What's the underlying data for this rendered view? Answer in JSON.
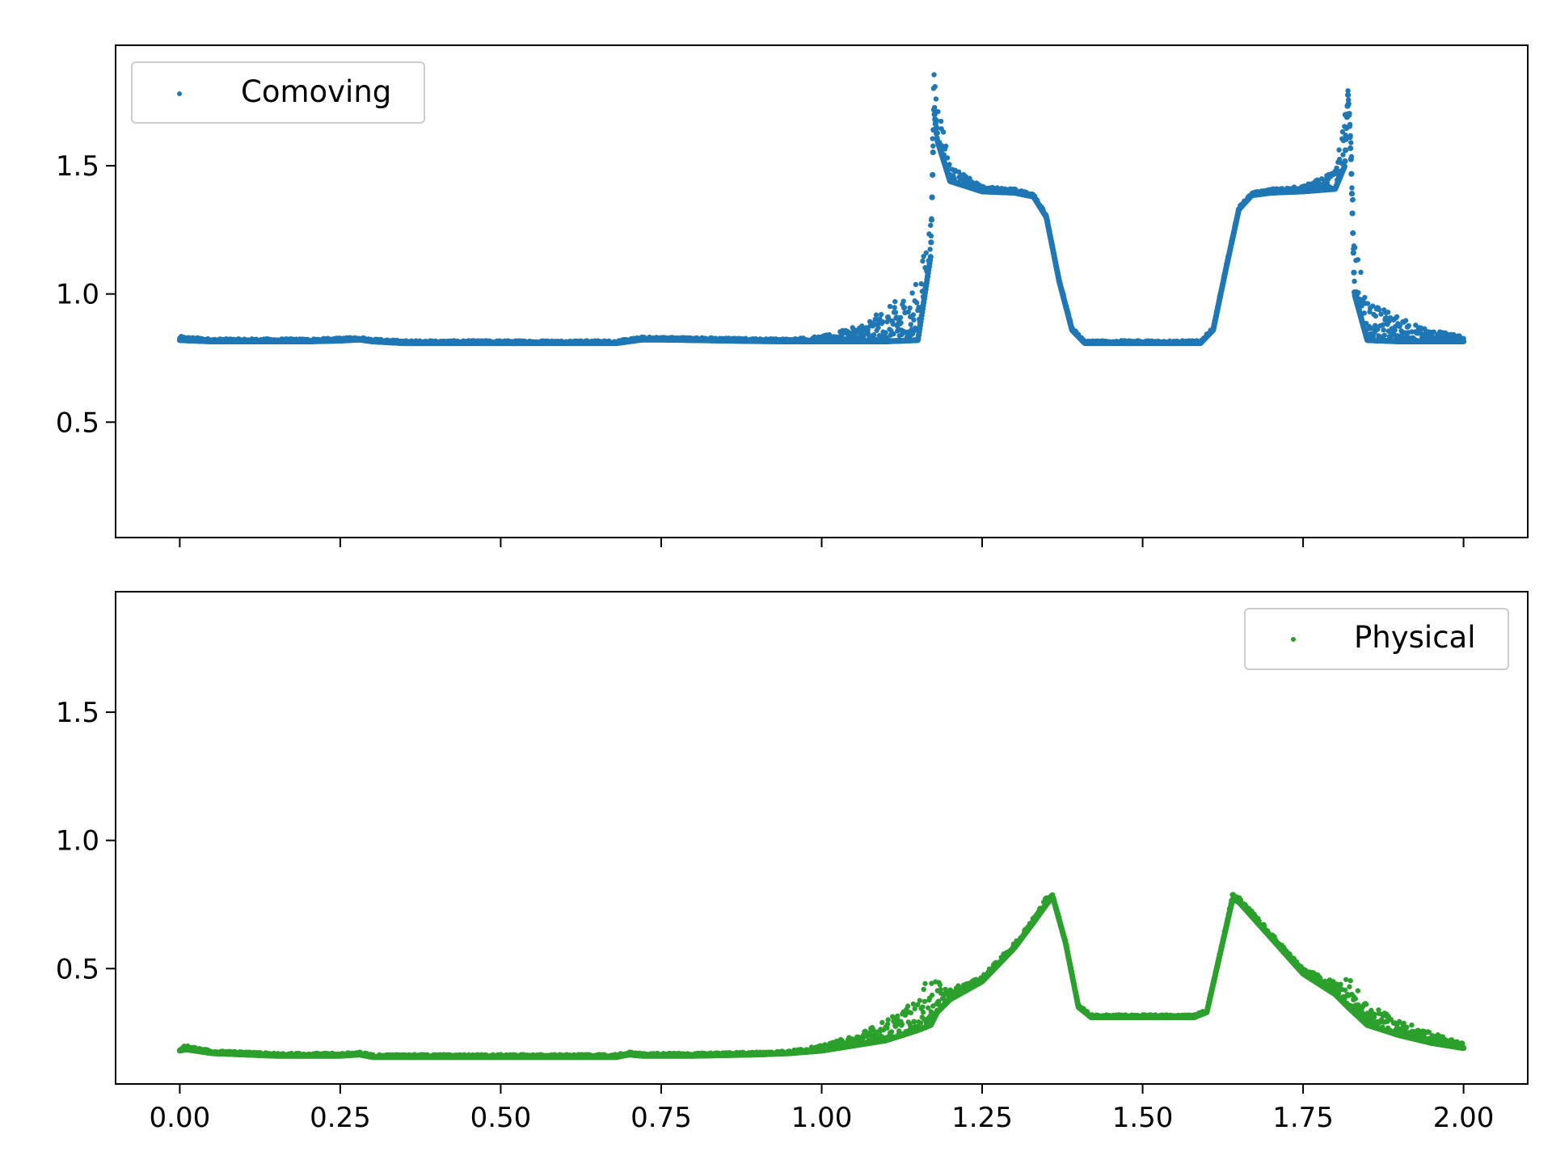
{
  "chart_data": [
    {
      "type": "scatter",
      "panel": "top",
      "color": "#1f77b4",
      "legend": {
        "label": "Comoving",
        "placement": "upper-left"
      },
      "xlim": [
        -0.1,
        2.1
      ],
      "ylim": [
        0.05,
        1.97
      ],
      "x_ticks": [
        0.0,
        0.25,
        0.5,
        0.75,
        1.0,
        1.25,
        1.5,
        1.75,
        2.0
      ],
      "x_tick_labels": [],
      "y_ticks": [
        0.5,
        1.0,
        1.5
      ],
      "y_tick_labels": [
        "0.5",
        "1.0",
        "1.5"
      ],
      "grid": false,
      "series": [
        {
          "name": "Comoving",
          "x": [
            0.0,
            0.05,
            0.1,
            0.15,
            0.2,
            0.25,
            0.28,
            0.3,
            0.35,
            0.4,
            0.5,
            0.6,
            0.68,
            0.7,
            0.72,
            0.75,
            0.8,
            0.9,
            0.95,
            1.0,
            1.05,
            1.1,
            1.15,
            1.17,
            1.175,
            1.18,
            1.2,
            1.25,
            1.3,
            1.33,
            1.35,
            1.37,
            1.39,
            1.41,
            1.45,
            1.5,
            1.55,
            1.59,
            1.61,
            1.63,
            1.65,
            1.67,
            1.7,
            1.75,
            1.8,
            1.815,
            1.82,
            1.825,
            1.83,
            1.85,
            1.9,
            1.95,
            2.0
          ],
          "y": [
            0.82,
            0.815,
            0.815,
            0.815,
            0.815,
            0.818,
            0.822,
            0.815,
            0.808,
            0.808,
            0.808,
            0.808,
            0.808,
            0.815,
            0.822,
            0.822,
            0.82,
            0.816,
            0.815,
            0.815,
            0.815,
            0.815,
            0.82,
            1.15,
            1.72,
            1.6,
            1.44,
            1.4,
            1.395,
            1.38,
            1.3,
            1.05,
            0.86,
            0.808,
            0.808,
            0.808,
            0.808,
            0.808,
            0.86,
            1.1,
            1.33,
            1.385,
            1.395,
            1.4,
            1.41,
            1.5,
            1.78,
            1.5,
            1.0,
            0.82,
            0.815,
            0.815,
            0.815
          ],
          "y_spread_max": [
            0.835,
            0.825,
            0.825,
            0.825,
            0.825,
            0.828,
            0.832,
            0.825,
            0.818,
            0.818,
            0.818,
            0.818,
            0.818,
            0.825,
            0.832,
            0.832,
            0.83,
            0.826,
            0.825,
            0.835,
            0.87,
            0.94,
            1.05,
            1.3,
            1.89,
            1.8,
            1.5,
            1.42,
            1.41,
            1.39,
            1.31,
            1.06,
            0.87,
            0.818,
            0.818,
            0.818,
            0.818,
            0.818,
            0.87,
            1.11,
            1.34,
            1.395,
            1.41,
            1.42,
            1.48,
            1.7,
            1.82,
            1.6,
            1.2,
            0.97,
            0.91,
            0.86,
            0.835
          ]
        }
      ]
    },
    {
      "type": "scatter",
      "panel": "bottom",
      "color": "#2ca02c",
      "legend": {
        "label": "Physical",
        "placement": "upper-right"
      },
      "xlim": [
        -0.1,
        2.1
      ],
      "ylim": [
        0.05,
        1.97
      ],
      "x_ticks": [
        0.0,
        0.25,
        0.5,
        0.75,
        1.0,
        1.25,
        1.5,
        1.75,
        2.0
      ],
      "x_tick_labels": [
        "0.00",
        "0.25",
        "0.50",
        "0.75",
        "1.00",
        "1.25",
        "1.50",
        "1.75",
        "2.00"
      ],
      "y_ticks": [
        0.5,
        1.0,
        1.5
      ],
      "y_tick_labels": [
        "0.5",
        "1.0",
        "1.5"
      ],
      "grid": false,
      "series": [
        {
          "name": "Physical",
          "x": [
            0.0,
            0.01,
            0.05,
            0.1,
            0.15,
            0.2,
            0.25,
            0.28,
            0.3,
            0.35,
            0.4,
            0.5,
            0.6,
            0.68,
            0.7,
            0.72,
            0.75,
            0.8,
            0.9,
            0.95,
            1.0,
            1.05,
            1.1,
            1.15,
            1.17,
            1.18,
            1.2,
            1.25,
            1.3,
            1.33,
            1.35,
            1.36,
            1.38,
            1.4,
            1.42,
            1.45,
            1.5,
            1.55,
            1.58,
            1.6,
            1.62,
            1.64,
            1.65,
            1.7,
            1.75,
            1.8,
            1.82,
            1.85,
            1.9,
            1.95,
            2.0
          ],
          "y": [
            0.18,
            0.185,
            0.17,
            0.165,
            0.16,
            0.16,
            0.16,
            0.165,
            0.155,
            0.155,
            0.155,
            0.155,
            0.155,
            0.155,
            0.165,
            0.16,
            0.16,
            0.16,
            0.165,
            0.17,
            0.18,
            0.2,
            0.22,
            0.26,
            0.28,
            0.33,
            0.38,
            0.45,
            0.58,
            0.68,
            0.75,
            0.78,
            0.6,
            0.35,
            0.31,
            0.31,
            0.31,
            0.31,
            0.31,
            0.33,
            0.55,
            0.77,
            0.76,
            0.62,
            0.48,
            0.4,
            0.35,
            0.28,
            0.24,
            0.21,
            0.19
          ],
          "y_spread_max": [
            0.195,
            0.2,
            0.18,
            0.175,
            0.17,
            0.17,
            0.17,
            0.175,
            0.165,
            0.165,
            0.165,
            0.165,
            0.165,
            0.165,
            0.175,
            0.17,
            0.17,
            0.17,
            0.175,
            0.18,
            0.2,
            0.24,
            0.3,
            0.38,
            0.49,
            0.45,
            0.42,
            0.47,
            0.6,
            0.7,
            0.78,
            0.79,
            0.61,
            0.36,
            0.32,
            0.32,
            0.32,
            0.32,
            0.32,
            0.34,
            0.56,
            0.79,
            0.78,
            0.64,
            0.5,
            0.45,
            0.47,
            0.36,
            0.3,
            0.25,
            0.21
          ]
        }
      ]
    }
  ]
}
